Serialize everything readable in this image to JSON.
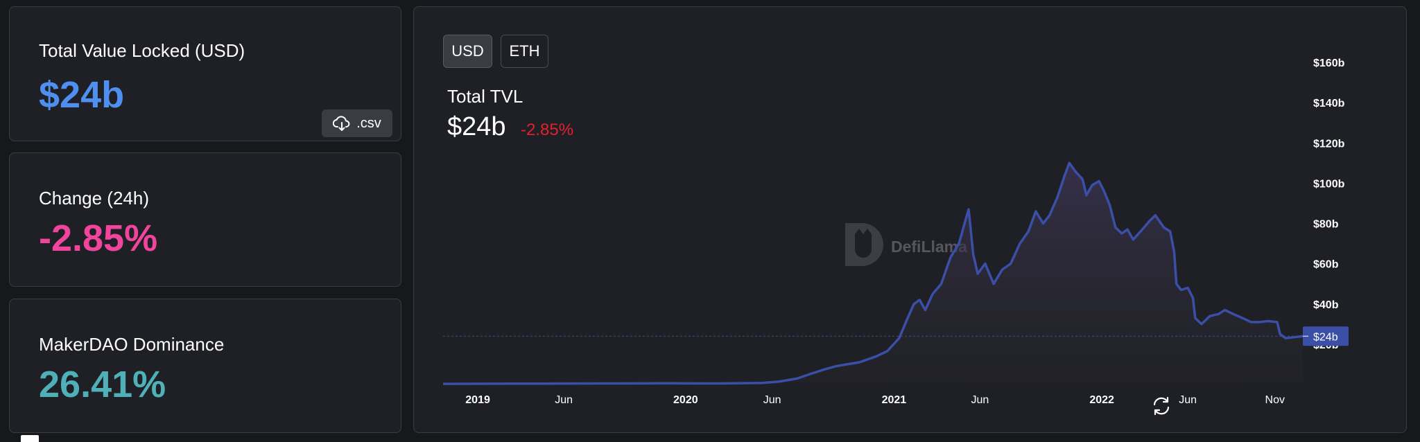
{
  "stats": {
    "tvl_label": "Total Value Locked (USD)",
    "tvl_value": "$24b",
    "change_label": "Change (24h)",
    "change_value": "-2.85%",
    "dominance_label": "MakerDAO Dominance",
    "dominance_value": "26.41%",
    "csv_label": ".csv"
  },
  "toggles": {
    "usd": "USD",
    "eth": "ETH",
    "active": "USD"
  },
  "chart_header": {
    "title": "Total TVL",
    "value": "$24b",
    "change": "-2.85%"
  },
  "watermark": "DefiLlama",
  "colors": {
    "tvl_value": "#4f8ff0",
    "change_value": "#f0449d",
    "dominance_value": "#4fb0b8",
    "chart_change": "#e5202b",
    "line": "#3b4fa8",
    "current_badge": "#3b4fa8"
  },
  "icons": {
    "csv": "cloud-download-icon",
    "refresh": "refresh-icon",
    "watermark": "llama-logo-icon"
  },
  "chart_data": {
    "type": "area",
    "title": "Total TVL",
    "xlabel": "",
    "ylabel": "",
    "y_unit": "billion USD",
    "ylim": [
      0,
      160
    ],
    "xlim": [
      "2018-11-01",
      "2022-12-20"
    ],
    "y_ticks": [
      {
        "value": 20,
        "label": "$20b"
      },
      {
        "value": 40,
        "label": "$40b"
      },
      {
        "value": 60,
        "label": "$60b"
      },
      {
        "value": 80,
        "label": "$80b"
      },
      {
        "value": 100,
        "label": "$100b"
      },
      {
        "value": 120,
        "label": "$120b"
      },
      {
        "value": 140,
        "label": "$140b"
      },
      {
        "value": 160,
        "label": "$160b"
      }
    ],
    "x_ticks": [
      {
        "date": "2019-01-01",
        "label": "2019",
        "bold": true
      },
      {
        "date": "2019-06-01",
        "label": "Jun",
        "bold": false
      },
      {
        "date": "2020-01-01",
        "label": "2020",
        "bold": true
      },
      {
        "date": "2020-06-01",
        "label": "Jun",
        "bold": false
      },
      {
        "date": "2021-01-01",
        "label": "2021",
        "bold": true
      },
      {
        "date": "2021-06-01",
        "label": "Jun",
        "bold": false
      },
      {
        "date": "2022-01-01",
        "label": "2022",
        "bold": true
      },
      {
        "date": "2022-06-01",
        "label": "Jun",
        "bold": false
      },
      {
        "date": "2022-11-01",
        "label": "Nov",
        "bold": false
      }
    ],
    "current": {
      "value": 24,
      "label": "$24b"
    },
    "series": [
      {
        "points": [
          [
            "2018-11-01",
            0.3
          ],
          [
            "2019-03-01",
            0.4
          ],
          [
            "2019-08-01",
            0.5
          ],
          [
            "2019-12-01",
            0.6
          ],
          [
            "2020-03-01",
            0.5
          ],
          [
            "2020-05-15",
            0.8
          ],
          [
            "2020-06-15",
            1.5
          ],
          [
            "2020-07-15",
            3.0
          ],
          [
            "2020-08-10",
            5.5
          ],
          [
            "2020-09-01",
            7.5
          ],
          [
            "2020-09-20",
            9.0
          ],
          [
            "2020-10-10",
            10.0
          ],
          [
            "2020-11-01",
            11.0
          ],
          [
            "2020-12-01",
            14.0
          ],
          [
            "2020-12-20",
            16.5
          ],
          [
            "2021-01-10",
            23.0
          ],
          [
            "2021-01-25",
            33.0
          ],
          [
            "2021-02-05",
            40.0
          ],
          [
            "2021-02-15",
            42.0
          ],
          [
            "2021-02-25",
            37.0
          ],
          [
            "2021-03-10",
            45.0
          ],
          [
            "2021-03-25",
            50.0
          ],
          [
            "2021-04-10",
            63.0
          ],
          [
            "2021-04-25",
            70.0
          ],
          [
            "2021-05-05",
            80.0
          ],
          [
            "2021-05-12",
            87.0
          ],
          [
            "2021-05-20",
            65.0
          ],
          [
            "2021-05-28",
            55.0
          ],
          [
            "2021-06-10",
            60.0
          ],
          [
            "2021-06-25",
            50.0
          ],
          [
            "2021-07-10",
            57.0
          ],
          [
            "2021-07-25",
            60.0
          ],
          [
            "2021-08-10",
            70.0
          ],
          [
            "2021-08-25",
            76.0
          ],
          [
            "2021-09-07",
            86.0
          ],
          [
            "2021-09-20",
            80.0
          ],
          [
            "2021-10-01",
            84.0
          ],
          [
            "2021-10-15",
            93.0
          ],
          [
            "2021-10-28",
            104.0
          ],
          [
            "2021-11-05",
            110.0
          ],
          [
            "2021-11-15",
            106.0
          ],
          [
            "2021-11-28",
            102.0
          ],
          [
            "2021-12-05",
            94.0
          ],
          [
            "2021-12-15",
            99.0
          ],
          [
            "2021-12-27",
            101.0
          ],
          [
            "2022-01-05",
            96.0
          ],
          [
            "2022-01-15",
            89.0
          ],
          [
            "2022-01-25",
            78.0
          ],
          [
            "2022-02-05",
            75.0
          ],
          [
            "2022-02-15",
            77.0
          ],
          [
            "2022-02-25",
            72.0
          ],
          [
            "2022-03-10",
            76.0
          ],
          [
            "2022-03-25",
            81.0
          ],
          [
            "2022-04-05",
            84.0
          ],
          [
            "2022-04-20",
            78.0
          ],
          [
            "2022-05-01",
            76.0
          ],
          [
            "2022-05-08",
            66.0
          ],
          [
            "2022-05-12",
            50.0
          ],
          [
            "2022-05-20",
            47.0
          ],
          [
            "2022-06-01",
            48.0
          ],
          [
            "2022-06-10",
            43.0
          ],
          [
            "2022-06-14",
            33.0
          ],
          [
            "2022-06-25",
            30.0
          ],
          [
            "2022-07-10",
            34.0
          ],
          [
            "2022-07-25",
            35.0
          ],
          [
            "2022-08-05",
            37.0
          ],
          [
            "2022-08-20",
            35.0
          ],
          [
            "2022-09-05",
            33.0
          ],
          [
            "2022-09-20",
            31.0
          ],
          [
            "2022-10-05",
            31.0
          ],
          [
            "2022-10-20",
            31.5
          ],
          [
            "2022-11-05",
            31.0
          ],
          [
            "2022-11-10",
            25.0
          ],
          [
            "2022-11-20",
            23.0
          ],
          [
            "2022-12-05",
            23.5
          ],
          [
            "2022-12-20",
            24.0
          ]
        ]
      }
    ]
  }
}
